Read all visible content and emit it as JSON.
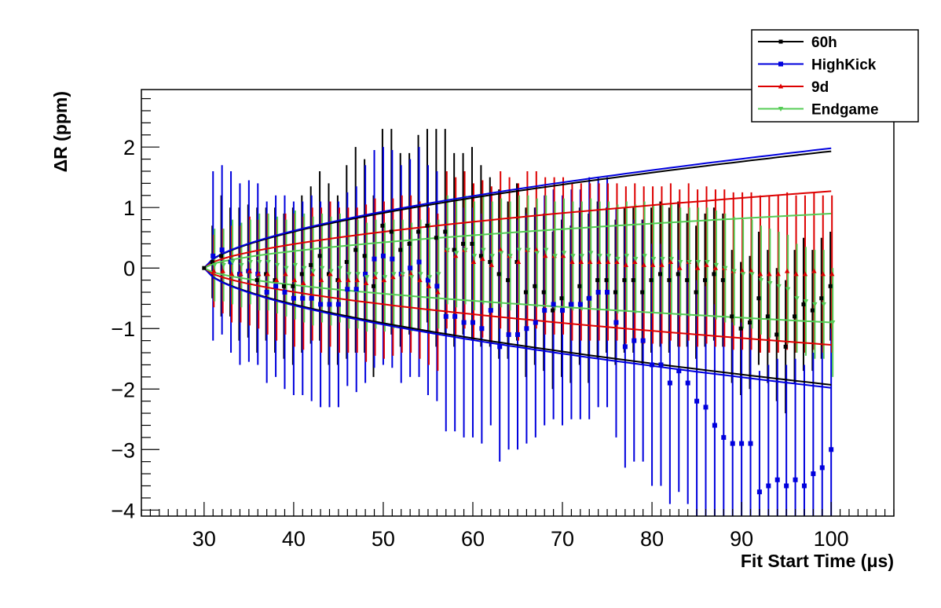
{
  "chart_data": {
    "type": "scatter",
    "xlabel": "Fit Start Time (μs)",
    "ylabel": "ΔR (ppm)",
    "xlim": [
      23,
      107
    ],
    "ylim": [
      -4.1,
      2.95
    ],
    "x_ticks": [
      30,
      40,
      50,
      60,
      70,
      80,
      90,
      100
    ],
    "x_tick_labels": [
      "30",
      "40",
      "50",
      "60",
      "70",
      "80",
      "90",
      "100"
    ],
    "y_ticks": [
      -4,
      -3,
      -2,
      -1,
      0,
      1,
      2
    ],
    "y_tick_labels": [
      "−4",
      "−3",
      "−2",
      "−1",
      "0",
      "1",
      "2"
    ],
    "legend_position": "top-right",
    "x": [
      30,
      31,
      32,
      33,
      34,
      35,
      36,
      37,
      38,
      39,
      40,
      41,
      42,
      43,
      44,
      45,
      46,
      47,
      48,
      49,
      50,
      51,
      52,
      53,
      54,
      55,
      56,
      57,
      58,
      59,
      60,
      61,
      62,
      63,
      64,
      65,
      66,
      67,
      68,
      69,
      70,
      71,
      72,
      73,
      74,
      75,
      76,
      77,
      78,
      79,
      80,
      81,
      82,
      83,
      84,
      85,
      86,
      87,
      88,
      89,
      90,
      91,
      92,
      93,
      94,
      95,
      96,
      97,
      98,
      99,
      100
    ],
    "series": [
      {
        "name": "60h",
        "color": "#000000",
        "marker": "star",
        "envelope_end": 1.93,
        "envelope_power": 0.6,
        "values": [
          0,
          0.1,
          0.2,
          0.1,
          -0.1,
          -0.05,
          -0.2,
          -0.1,
          -0.2,
          -0.3,
          -0.3,
          -0.1,
          0.05,
          0.2,
          -0.1,
          -0.2,
          0.1,
          0.3,
          0.2,
          -0.3,
          0.7,
          0.6,
          0.3,
          0.4,
          0.6,
          0.7,
          0.5,
          0.6,
          0.3,
          0.4,
          0.4,
          0.2,
          0.1,
          -0.1,
          -0.2,
          0.1,
          -0.4,
          -0.3,
          -0.4,
          -0.7,
          -0.5,
          -0.6,
          -0.3,
          -0.5,
          -0.2,
          -0.2,
          -0.4,
          -0.2,
          -0.2,
          -0.4,
          -0.2,
          -0.1,
          -0.2,
          -0.1,
          -0.2,
          -0.4,
          -0.2,
          -0.1,
          -0.2,
          -0.8,
          -1.0,
          -0.9,
          -0.5,
          -0.8,
          -1.1,
          -1.3,
          -0.8,
          -0.6,
          -0.7,
          -0.5,
          -0.3
        ],
        "errors": [
          0,
          0.6,
          1.0,
          0.9,
          1.1,
          1.1,
          1.2,
          1.1,
          1.2,
          1.2,
          1.3,
          1.3,
          1.3,
          1.4,
          1.5,
          1.4,
          1.6,
          1.7,
          1.6,
          1.5,
          1.6,
          1.7,
          1.6,
          1.5,
          1.6,
          1.6,
          1.8,
          1.7,
          1.6,
          1.5,
          1.6,
          1.5,
          1.4,
          1.4,
          1.3,
          1.3,
          1.4,
          1.3,
          1.3,
          1.3,
          1.3,
          1.3,
          1.3,
          1.4,
          1.3,
          1.2,
          1.2,
          1.2,
          1.2,
          1.2,
          1.2,
          1.2,
          1.2,
          1.2,
          1.1,
          1.1,
          1.1,
          1.1,
          1.1,
          1.1,
          1.1,
          1.1,
          1.1,
          1.1,
          1.1,
          1.1,
          1.1,
          1.1,
          1.0,
          1.0,
          0.9
        ]
      },
      {
        "name": "HighKick",
        "color": "#0000dd",
        "marker": "square",
        "envelope_end": 1.98,
        "envelope_power": 0.6,
        "values": [
          0,
          0.2,
          0.3,
          0.1,
          -0.1,
          -0.05,
          -0.1,
          -0.4,
          -0.3,
          -0.4,
          -0.5,
          -0.5,
          -0.5,
          -0.6,
          -0.6,
          -0.6,
          -0.35,
          -0.35,
          -0.1,
          0.15,
          0.2,
          0.15,
          -0.1,
          0.0,
          0.1,
          -0.2,
          -0.3,
          -0.8,
          -0.8,
          -0.9,
          -0.9,
          -1.0,
          -0.7,
          -1.3,
          -1.1,
          -1.1,
          -1.0,
          -0.9,
          -0.7,
          -0.6,
          -0.7,
          -0.6,
          -0.6,
          -0.5,
          -0.4,
          -0.4,
          -0.9,
          -1.3,
          -1.2,
          -1.2,
          -1.6,
          -1.6,
          -1.9,
          -1.7,
          -1.9,
          -2.2,
          -2.3,
          -2.6,
          -2.8,
          -2.9,
          -2.9,
          -2.9,
          -3.7,
          -3.6,
          -3.5,
          -3.6,
          -3.5,
          -3.6,
          -3.4,
          -3.3,
          -3.0
        ],
        "errors": [
          0,
          1.4,
          1.4,
          1.5,
          1.5,
          1.5,
          1.5,
          1.5,
          1.5,
          1.6,
          1.6,
          1.6,
          1.7,
          1.7,
          1.7,
          1.7,
          1.6,
          1.7,
          1.8,
          1.8,
          1.8,
          1.8,
          1.8,
          1.8,
          1.9,
          1.9,
          1.9,
          1.9,
          1.9,
          1.9,
          1.9,
          1.9,
          1.9,
          1.9,
          1.9,
          1.9,
          1.9,
          1.9,
          1.9,
          1.9,
          1.9,
          1.9,
          1.9,
          2.0,
          1.9,
          1.9,
          1.9,
          2.0,
          2.0,
          2.0,
          2.0,
          2.0,
          2.0,
          2.0,
          2.0,
          2.0,
          2.0,
          2.0,
          2.0,
          2.0,
          2.0,
          2.0,
          2.0,
          2.0,
          2.0,
          2.0,
          2.0,
          2.0,
          2.0,
          2.0,
          2.0
        ]
      },
      {
        "name": "9d",
        "color": "#dd0000",
        "marker": "triangle-up",
        "envelope_end": 1.27,
        "envelope_power": 0.6,
        "values": [
          0,
          -0.05,
          -0.05,
          -0.1,
          -0.1,
          -0.05,
          -0.1,
          -0.1,
          -0.2,
          -0.1,
          -0.2,
          -0.25,
          -0.1,
          -0.2,
          -0.1,
          -0.2,
          -0.2,
          -0.2,
          -0.25,
          -0.15,
          -0.2,
          -0.15,
          -0.1,
          -0.1,
          -0.2,
          -0.3,
          -0.4,
          0.3,
          0.2,
          0.3,
          0.1,
          0.15,
          0.05,
          0.3,
          0.2,
          0.1,
          0.3,
          0.3,
          0.2,
          0.2,
          0.2,
          0.1,
          0.1,
          0.1,
          0.1,
          0.1,
          0.1,
          0.05,
          0.1,
          0.05,
          0.05,
          0.05,
          0.1,
          0.0,
          0.1,
          0.0,
          0.05,
          0.0,
          0.0,
          -0.05,
          -0.05,
          -0.05,
          -0.1,
          -0.1,
          -0.1,
          -0.05,
          -0.1,
          -0.1,
          -0.05,
          -0.1,
          -0.1
        ],
        "errors": [
          0,
          0.6,
          0.7,
          0.8,
          0.8,
          0.9,
          0.9,
          1.0,
          1.0,
          1.0,
          1.1,
          1.1,
          1.1,
          1.2,
          1.2,
          1.2,
          1.2,
          1.2,
          1.3,
          1.3,
          1.3,
          1.3,
          1.3,
          1.3,
          1.3,
          1.3,
          1.3,
          1.3,
          1.3,
          1.3,
          1.3,
          1.3,
          1.3,
          1.3,
          1.3,
          1.3,
          1.3,
          1.3,
          1.3,
          1.3,
          1.3,
          1.3,
          1.3,
          1.3,
          1.3,
          1.3,
          1.3,
          1.3,
          1.3,
          1.3,
          1.3,
          1.3,
          1.3,
          1.3,
          1.3,
          1.3,
          1.3,
          1.3,
          1.3,
          1.3,
          1.3,
          1.3,
          1.3,
          1.3,
          1.3,
          1.3,
          1.3,
          1.3,
          1.3,
          1.3,
          1.3
        ]
      },
      {
        "name": "Endgame",
        "color": "#55cc55",
        "marker": "triangle-down",
        "envelope_end": 0.9,
        "envelope_power": 0.6,
        "values": [
          0,
          0.05,
          0.05,
          0.1,
          0.05,
          0.1,
          0.1,
          0.1,
          0.05,
          0.0,
          0.05,
          0.0,
          -0.05,
          0.0,
          -0.05,
          0.0,
          -0.1,
          -0.1,
          -0.15,
          -0.1,
          -0.15,
          -0.1,
          -0.1,
          -0.15,
          -0.1,
          -0.15,
          -0.1,
          0.3,
          0.25,
          0.3,
          0.2,
          0.3,
          0.2,
          0.25,
          0.2,
          0.3,
          0.3,
          0.25,
          0.3,
          0.2,
          0.25,
          0.2,
          0.2,
          0.25,
          0.2,
          0.2,
          0.15,
          0.2,
          0.15,
          0.2,
          0.15,
          0.15,
          0.15,
          0.1,
          0.1,
          0.1,
          0.1,
          0.05,
          0.0,
          -0.05,
          -0.1,
          -0.1,
          -0.2,
          -0.25,
          -0.3,
          -0.35,
          -0.5,
          -0.55,
          -0.6,
          -0.6,
          -0.9
        ],
        "errors": [
          0,
          0.6,
          0.6,
          0.7,
          0.7,
          0.7,
          0.8,
          0.8,
          0.8,
          0.8,
          0.9,
          0.9,
          0.9,
          0.9,
          0.9,
          0.9,
          0.9,
          0.9,
          0.9,
          0.9,
          0.9,
          0.9,
          0.9,
          0.9,
          0.9,
          0.9,
          0.9,
          0.9,
          0.9,
          0.9,
          0.9,
          0.9,
          0.9,
          0.9,
          0.9,
          0.9,
          0.9,
          0.9,
          0.9,
          0.9,
          0.9,
          0.9,
          0.9,
          0.9,
          0.9,
          0.9,
          0.9,
          0.9,
          0.9,
          0.9,
          0.9,
          0.9,
          0.9,
          0.9,
          0.9,
          0.9,
          0.9,
          0.9,
          0.9,
          0.9,
          0.9,
          0.9,
          0.9,
          0.9,
          0.9,
          0.9,
          0.9,
          0.9,
          0.9,
          0.9,
          0.9
        ]
      }
    ]
  }
}
